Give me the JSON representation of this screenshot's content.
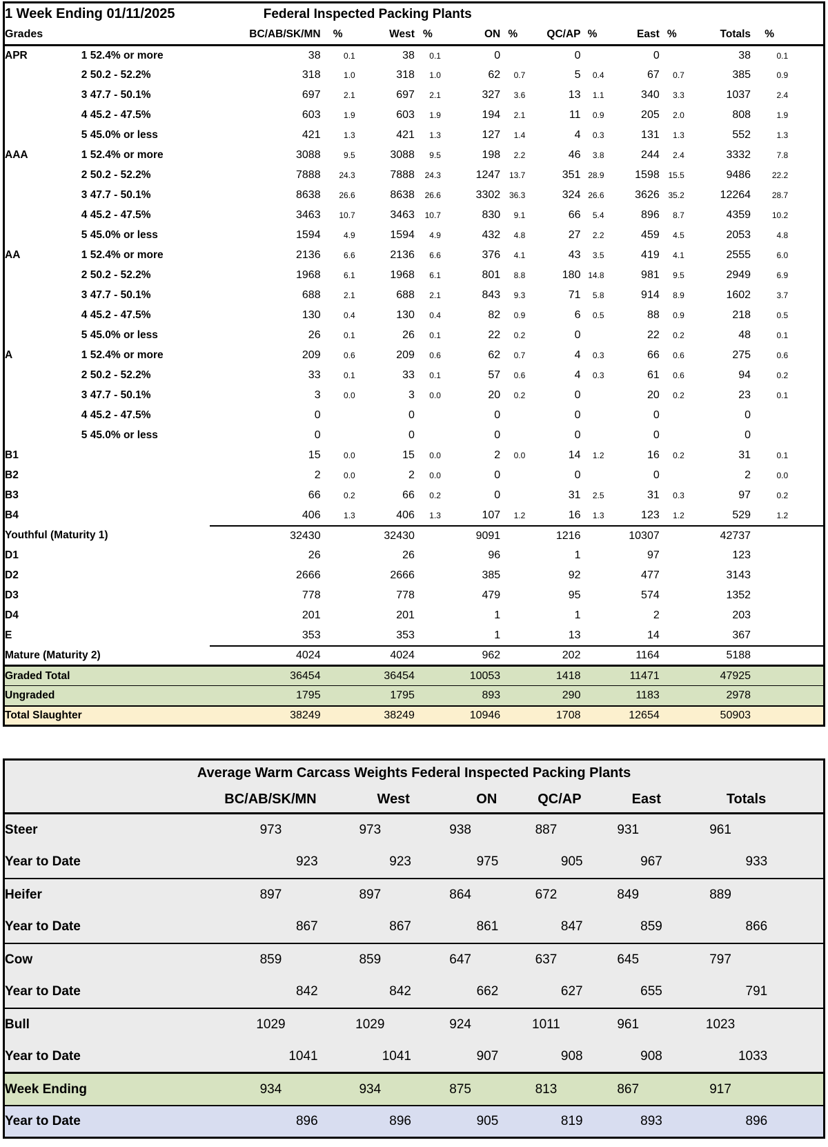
{
  "header": {
    "week_label": "1 Week Ending 01/11/2025",
    "title": "Federal Inspected Packing Plants",
    "grades_label": "Grades",
    "pct_label": "%",
    "regions": [
      "BC/AB/SK/MN",
      "West",
      "ON",
      "QC/AP",
      "East",
      "Totals"
    ]
  },
  "grades_table": {
    "rows": [
      {
        "grade": "APR",
        "desc": "1 52.4% or more",
        "type": "grade",
        "values": [
          "38",
          "38",
          "0",
          "0",
          "0",
          "38"
        ],
        "pcts": [
          "0.1",
          "0.1",
          "",
          "",
          "",
          "0.1"
        ]
      },
      {
        "grade": "",
        "desc": "2 50.2 - 52.2%",
        "type": "grade",
        "values": [
          "318",
          "318",
          "62",
          "5",
          "67",
          "385"
        ],
        "pcts": [
          "1.0",
          "1.0",
          "0.7",
          "0.4",
          "0.7",
          "0.9"
        ]
      },
      {
        "grade": "",
        "desc": "3 47.7 - 50.1%",
        "type": "grade",
        "values": [
          "697",
          "697",
          "327",
          "13",
          "340",
          "1037"
        ],
        "pcts": [
          "2.1",
          "2.1",
          "3.6",
          "1.1",
          "3.3",
          "2.4"
        ]
      },
      {
        "grade": "",
        "desc": "4 45.2 - 47.5%",
        "type": "grade",
        "values": [
          "603",
          "603",
          "194",
          "11",
          "205",
          "808"
        ],
        "pcts": [
          "1.9",
          "1.9",
          "2.1",
          "0.9",
          "2.0",
          "1.9"
        ]
      },
      {
        "grade": "",
        "desc": "5 45.0% or less",
        "type": "grade",
        "values": [
          "421",
          "421",
          "127",
          "4",
          "131",
          "552"
        ],
        "pcts": [
          "1.3",
          "1.3",
          "1.4",
          "0.3",
          "1.3",
          "1.3"
        ]
      },
      {
        "grade": "AAA",
        "desc": "1 52.4% or more",
        "type": "grade",
        "values": [
          "3088",
          "3088",
          "198",
          "46",
          "244",
          "3332"
        ],
        "pcts": [
          "9.5",
          "9.5",
          "2.2",
          "3.8",
          "2.4",
          "7.8"
        ]
      },
      {
        "grade": "",
        "desc": "2 50.2 - 52.2%",
        "type": "grade",
        "values": [
          "7888",
          "7888",
          "1247",
          "351",
          "1598",
          "9486"
        ],
        "pcts": [
          "24.3",
          "24.3",
          "13.7",
          "28.9",
          "15.5",
          "22.2"
        ]
      },
      {
        "grade": "",
        "desc": "3 47.7 - 50.1%",
        "type": "grade",
        "values": [
          "8638",
          "8638",
          "3302",
          "324",
          "3626",
          "12264"
        ],
        "pcts": [
          "26.6",
          "26.6",
          "36.3",
          "26.6",
          "35.2",
          "28.7"
        ]
      },
      {
        "grade": "",
        "desc": "4 45.2 - 47.5%",
        "type": "grade",
        "values": [
          "3463",
          "3463",
          "830",
          "66",
          "896",
          "4359"
        ],
        "pcts": [
          "10.7",
          "10.7",
          "9.1",
          "5.4",
          "8.7",
          "10.2"
        ]
      },
      {
        "grade": "",
        "desc": "5 45.0% or less",
        "type": "grade",
        "values": [
          "1594",
          "1594",
          "432",
          "27",
          "459",
          "2053"
        ],
        "pcts": [
          "4.9",
          "4.9",
          "4.8",
          "2.2",
          "4.5",
          "4.8"
        ]
      },
      {
        "grade": "AA",
        "desc": "1 52.4% or more",
        "type": "grade",
        "values": [
          "2136",
          "2136",
          "376",
          "43",
          "419",
          "2555"
        ],
        "pcts": [
          "6.6",
          "6.6",
          "4.1",
          "3.5",
          "4.1",
          "6.0"
        ]
      },
      {
        "grade": "",
        "desc": "2 50.2 - 52.2%",
        "type": "grade",
        "values": [
          "1968",
          "1968",
          "801",
          "180",
          "981",
          "2949"
        ],
        "pcts": [
          "6.1",
          "6.1",
          "8.8",
          "14.8",
          "9.5",
          "6.9"
        ]
      },
      {
        "grade": "",
        "desc": "3 47.7 - 50.1%",
        "type": "grade",
        "values": [
          "688",
          "688",
          "843",
          "71",
          "914",
          "1602"
        ],
        "pcts": [
          "2.1",
          "2.1",
          "9.3",
          "5.8",
          "8.9",
          "3.7"
        ]
      },
      {
        "grade": "",
        "desc": "4 45.2 - 47.5%",
        "type": "grade",
        "values": [
          "130",
          "130",
          "82",
          "6",
          "88",
          "218"
        ],
        "pcts": [
          "0.4",
          "0.4",
          "0.9",
          "0.5",
          "0.9",
          "0.5"
        ]
      },
      {
        "grade": "",
        "desc": "5 45.0% or less",
        "type": "grade",
        "values": [
          "26",
          "26",
          "22",
          "0",
          "22",
          "48"
        ],
        "pcts": [
          "0.1",
          "0.1",
          "0.2",
          "",
          "0.2",
          "0.1"
        ]
      },
      {
        "grade": "A",
        "desc": "1 52.4% or more",
        "type": "grade",
        "values": [
          "209",
          "209",
          "62",
          "4",
          "66",
          "275"
        ],
        "pcts": [
          "0.6",
          "0.6",
          "0.7",
          "0.3",
          "0.6",
          "0.6"
        ]
      },
      {
        "grade": "",
        "desc": "2 50.2 - 52.2%",
        "type": "grade",
        "values": [
          "33",
          "33",
          "57",
          "4",
          "61",
          "94"
        ],
        "pcts": [
          "0.1",
          "0.1",
          "0.6",
          "0.3",
          "0.6",
          "0.2"
        ]
      },
      {
        "grade": "",
        "desc": "3 47.7 - 50.1%",
        "type": "grade",
        "values": [
          "3",
          "3",
          "20",
          "0",
          "20",
          "23"
        ],
        "pcts": [
          "0.0",
          "0.0",
          "0.2",
          "",
          "0.2",
          "0.1"
        ]
      },
      {
        "grade": "",
        "desc": "4 45.2 - 47.5%",
        "type": "grade",
        "values": [
          "0",
          "0",
          "0",
          "0",
          "0",
          "0"
        ],
        "pcts": [
          "",
          "",
          "",
          "",
          "",
          ""
        ]
      },
      {
        "grade": "",
        "desc": "5 45.0% or less",
        "type": "grade",
        "values": [
          "0",
          "0",
          "0",
          "0",
          "0",
          "0"
        ],
        "pcts": [
          "",
          "",
          "",
          "",
          "",
          ""
        ]
      },
      {
        "grade": "B1",
        "desc": "",
        "type": "grade",
        "values": [
          "15",
          "15",
          "2",
          "14",
          "16",
          "31"
        ],
        "pcts": [
          "0.0",
          "0.0",
          "0.0",
          "1.2",
          "0.2",
          "0.1"
        ]
      },
      {
        "grade": "B2",
        "desc": "",
        "type": "grade",
        "values": [
          "2",
          "2",
          "0",
          "0",
          "0",
          "2"
        ],
        "pcts": [
          "0.0",
          "0.0",
          "",
          "",
          "",
          "0.0"
        ]
      },
      {
        "grade": "B3",
        "desc": "",
        "type": "grade",
        "values": [
          "66",
          "66",
          "0",
          "31",
          "31",
          "97"
        ],
        "pcts": [
          "0.2",
          "0.2",
          "",
          "2.5",
          "0.3",
          "0.2"
        ]
      },
      {
        "grade": "B4",
        "desc": "",
        "type": "grade",
        "values": [
          "406",
          "406",
          "107",
          "16",
          "123",
          "529"
        ],
        "pcts": [
          "1.3",
          "1.3",
          "1.2",
          "1.3",
          "1.2",
          "1.2"
        ]
      },
      {
        "grade": "Youthful (Maturity 1)",
        "desc": "",
        "type": "subtotal",
        "values": [
          "32430",
          "32430",
          "9091",
          "1216",
          "10307",
          "42737"
        ],
        "pcts": [
          "",
          "",
          "",
          "",
          "",
          ""
        ]
      },
      {
        "grade": "D1",
        "desc": "",
        "type": "grade",
        "values": [
          "26",
          "26",
          "96",
          "1",
          "97",
          "123"
        ],
        "pcts": [
          "",
          "",
          "",
          "",
          "",
          ""
        ]
      },
      {
        "grade": "D2",
        "desc": "",
        "type": "grade",
        "values": [
          "2666",
          "2666",
          "385",
          "92",
          "477",
          "3143"
        ],
        "pcts": [
          "",
          "",
          "",
          "",
          "",
          ""
        ]
      },
      {
        "grade": "D3",
        "desc": "",
        "type": "grade",
        "values": [
          "778",
          "778",
          "479",
          "95",
          "574",
          "1352"
        ],
        "pcts": [
          "",
          "",
          "",
          "",
          "",
          ""
        ]
      },
      {
        "grade": "D4",
        "desc": "",
        "type": "grade",
        "values": [
          "201",
          "201",
          "1",
          "1",
          "2",
          "203"
        ],
        "pcts": [
          "",
          "",
          "",
          "",
          "",
          ""
        ]
      },
      {
        "grade": "E",
        "desc": "",
        "type": "grade",
        "values": [
          "353",
          "353",
          "1",
          "13",
          "14",
          "367"
        ],
        "pcts": [
          "",
          "",
          "",
          "",
          "",
          ""
        ]
      },
      {
        "grade": "Mature (Maturity 2)",
        "desc": "",
        "type": "subtotal",
        "values": [
          "4024",
          "4024",
          "962",
          "202",
          "1164",
          "5188"
        ],
        "pcts": [
          "",
          "",
          "",
          "",
          "",
          ""
        ]
      },
      {
        "grade": "Graded Total",
        "desc": "",
        "type": "graded-total",
        "values": [
          "36454",
          "36454",
          "10053",
          "1418",
          "11471",
          "47925"
        ],
        "pcts": [
          "",
          "",
          "",
          "",
          "",
          ""
        ]
      },
      {
        "grade": "Ungraded",
        "desc": "",
        "type": "ungraded",
        "values": [
          "1795",
          "1795",
          "893",
          "290",
          "1183",
          "2978"
        ],
        "pcts": [
          "",
          "",
          "",
          "",
          "",
          ""
        ]
      },
      {
        "grade": "Total Slaughter",
        "desc": "",
        "type": "total-slaughter",
        "values": [
          "38249",
          "38249",
          "10946",
          "1708",
          "12654",
          "50903"
        ],
        "pcts": [
          "",
          "",
          "",
          "",
          "",
          ""
        ]
      }
    ]
  },
  "weights_table": {
    "title": "Average Warm Carcass Weights Federal Inspected Packing Plants",
    "columns": [
      "BC/AB/SK/MN",
      "West",
      "ON",
      "QC/AP",
      "East",
      "Totals"
    ],
    "rows": [
      {
        "label": "Steer",
        "type": "current",
        "values": [
          "973",
          "973",
          "938",
          "887",
          "931",
          "961"
        ]
      },
      {
        "label": "Year to Date",
        "type": "ytd",
        "values": [
          "923",
          "923",
          "975",
          "905",
          "967",
          "933"
        ]
      },
      {
        "label": "Heifer",
        "type": "current",
        "values": [
          "897",
          "897",
          "864",
          "672",
          "849",
          "889"
        ]
      },
      {
        "label": "Year to Date",
        "type": "ytd",
        "values": [
          "867",
          "867",
          "861",
          "847",
          "859",
          "866"
        ]
      },
      {
        "label": "Cow",
        "type": "current",
        "values": [
          "859",
          "859",
          "647",
          "637",
          "645",
          "797"
        ]
      },
      {
        "label": "Year to Date",
        "type": "ytd",
        "values": [
          "842",
          "842",
          "662",
          "627",
          "655",
          "791"
        ]
      },
      {
        "label": "Bull",
        "type": "current",
        "values": [
          "1029",
          "1029",
          "924",
          "1011",
          "961",
          "1023"
        ]
      },
      {
        "label": "Year to Date",
        "type": "ytd",
        "values": [
          "1041",
          "1041",
          "907",
          "908",
          "908",
          "1033"
        ]
      },
      {
        "label": "Week Ending",
        "type": "week-ending",
        "values": [
          "934",
          "934",
          "875",
          "813",
          "867",
          "917"
        ]
      },
      {
        "label": "Year to Date",
        "type": "ytd-total",
        "values": [
          "896",
          "896",
          "905",
          "819",
          "893",
          "896"
        ]
      }
    ]
  },
  "colors": {
    "green_row": "#d7e3c1",
    "yellow_row": "#fcf0ce",
    "blue_row": "#d8ddf0",
    "gray_row": "#ebebeb"
  }
}
